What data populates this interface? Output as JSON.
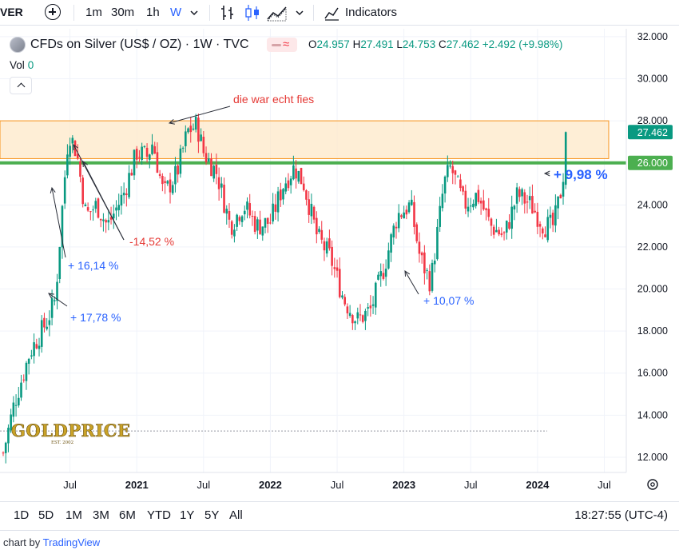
{
  "toolbar": {
    "symbol": "VER",
    "intervals": [
      "1m",
      "30m",
      "1h",
      "W"
    ],
    "indicators_label": "Indicators"
  },
  "legend": {
    "title": "CFDs on Silver (US$ / OZ) · 1W · TVC",
    "o_label": "O",
    "o": "24.957",
    "h_label": "H",
    "h": "27.491",
    "l_label": "L",
    "l": "24.753",
    "c_label": "C",
    "c": "27.462",
    "change": "+2.492 (+9.98%)",
    "vol_label": "Vol",
    "vol": "0"
  },
  "bottom": {
    "ranges": [
      "1D",
      "5D",
      "1M",
      "3M",
      "6M",
      "YTD",
      "1Y",
      "5Y",
      "All"
    ],
    "clock": "18:27:55 (UTC-4)"
  },
  "credit": {
    "prefix": "chart by ",
    "brand": "TradingView"
  },
  "colors": {
    "up": "#089981",
    "down": "#f23645",
    "zone": "#f7931a",
    "support": "#4caf50",
    "annot_blue": "#2962ff",
    "annot_red": "#e53935"
  },
  "logo_text": "GOLDPRICE",
  "logo_sub": "EST. 2002",
  "chart_data": {
    "type": "candlestick",
    "title": "CFDs on Silver (US$ / OZ) · 1W · TVC",
    "y_ticks": [
      "32.000",
      "30.000",
      "28.000",
      "26.000",
      "24.000",
      "22.000",
      "20.000",
      "18.000",
      "16.000",
      "14.000",
      "12.000"
    ],
    "ylim": [
      11.2,
      32.3
    ],
    "x_ticks": [
      {
        "label": "Jul",
        "t": 2020.5,
        "bold": false
      },
      {
        "label": "2021",
        "t": 2021.0,
        "bold": true
      },
      {
        "label": "Jul",
        "t": 2021.5,
        "bold": false
      },
      {
        "label": "2022",
        "t": 2022.0,
        "bold": true
      },
      {
        "label": "Jul",
        "t": 2022.5,
        "bold": false
      },
      {
        "label": "2023",
        "t": 2023.0,
        "bold": true
      },
      {
        "label": "Jul",
        "t": 2023.5,
        "bold": false
      },
      {
        "label": "2024",
        "t": 2024.0,
        "bold": true
      },
      {
        "label": "Jul",
        "t": 2024.5,
        "bold": false
      }
    ],
    "xlim": [
      2020.0,
      2024.85
    ],
    "last_price": "27.462",
    "support_level": "26.000",
    "resistance_zone": [
      26.2,
      28.0
    ],
    "dotted_level": 13.25,
    "anchors": [
      [
        2020.0,
        12.2
      ],
      [
        2020.08,
        14.5
      ],
      [
        2020.2,
        17.0
      ],
      [
        2020.33,
        18.5
      ],
      [
        2020.39,
        19.5
      ],
      [
        2020.45,
        24.5
      ],
      [
        2020.49,
        27.5
      ],
      [
        2020.55,
        26.5
      ],
      [
        2020.62,
        23.5
      ],
      [
        2020.7,
        24.0
      ],
      [
        2020.78,
        23.0
      ],
      [
        2020.9,
        24.5
      ],
      [
        2021.0,
        26.5
      ],
      [
        2021.08,
        26.3
      ],
      [
        2021.12,
        27.0
      ],
      [
        2021.2,
        24.5
      ],
      [
        2021.3,
        25.5
      ],
      [
        2021.38,
        27.5
      ],
      [
        2021.45,
        27.8
      ],
      [
        2021.5,
        26.5
      ],
      [
        2021.6,
        25.5
      ],
      [
        2021.7,
        23.0
      ],
      [
        2021.8,
        24.0
      ],
      [
        2021.9,
        23.0
      ],
      [
        2022.0,
        23.2
      ],
      [
        2022.1,
        25.0
      ],
      [
        2022.18,
        25.8
      ],
      [
        2022.25,
        25.0
      ],
      [
        2022.35,
        22.5
      ],
      [
        2022.45,
        21.5
      ],
      [
        2022.55,
        19.5
      ],
      [
        2022.65,
        18.5
      ],
      [
        2022.75,
        19.0
      ],
      [
        2022.85,
        21.0
      ],
      [
        2022.95,
        23.5
      ],
      [
        2023.05,
        24.0
      ],
      [
        2023.12,
        21.5
      ],
      [
        2023.2,
        20.3
      ],
      [
        2023.3,
        25.0
      ],
      [
        2023.35,
        25.8
      ],
      [
        2023.45,
        24.0
      ],
      [
        2023.55,
        24.5
      ],
      [
        2023.65,
        23.0
      ],
      [
        2023.75,
        22.5
      ],
      [
        2023.85,
        24.5
      ],
      [
        2023.95,
        24.0
      ],
      [
        2024.05,
        23.0
      ],
      [
        2024.12,
        23.0
      ],
      [
        2024.18,
        24.8
      ],
      [
        2024.23,
        27.46
      ]
    ],
    "annotations": [
      {
        "text": "die war echt fies",
        "color": "red"
      },
      {
        "text": "-14,52 %",
        "color": "red"
      },
      {
        "text": "+ 16,14 %",
        "color": "blue"
      },
      {
        "text": "+ 17,78 %",
        "color": "blue"
      },
      {
        "text": "+ 10,07 %",
        "color": "blue"
      },
      {
        "text": "+ 9,98 %",
        "color": "blue"
      }
    ]
  }
}
